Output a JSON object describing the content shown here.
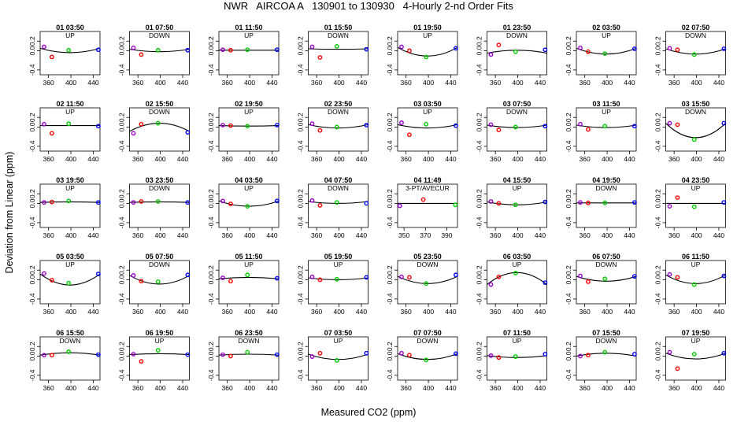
{
  "figure": {
    "title": "NWR   AIRCOA A   130901 to 130930   4-Hourly 2-nd Order Fits",
    "xlabel": "Measured CO2 (ppm)",
    "ylabel": "Deviation from Linear (ppm)"
  },
  "chart_data": {
    "type": "scatter",
    "title": "NWR   AIRCOA A   130901 to 130930   4-Hourly 2-nd Order Fits",
    "xlabel": "Measured CO2 (ppm)",
    "ylabel": "Deviation from Linear (ppm)",
    "default_xlim": [
      345,
      452
    ],
    "default_xticks": [
      360,
      400,
      440
    ],
    "ylim": [
      -0.5,
      0.4
    ],
    "yticks": [
      -0.4,
      0.0,
      0.2
    ],
    "point_colors": [
      "#9900cc",
      "#ff0000",
      "#00cc00",
      "#0000ff"
    ],
    "default_x": [
      352,
      366,
      396,
      449
    ],
    "panels": [
      {
        "title": "01 03:50",
        "label": "UP",
        "y": [
          0.08,
          -0.13,
          0.01,
          0.02
        ],
        "fit": [
          0.05,
          -0.04
        ]
      },
      {
        "title": "01 07:50",
        "label": "DOWN",
        "y": [
          0.06,
          -0.08,
          0.01,
          0.01
        ],
        "fit": [
          0.03,
          -0.02
        ]
      },
      {
        "title": "01 11:50",
        "label": "UP",
        "y": [
          0.02,
          0.01,
          0.02,
          0.02
        ],
        "fit": [
          0.01,
          0.01
        ]
      },
      {
        "title": "01 15:50",
        "label": "DOWN",
        "y": [
          0.08,
          -0.14,
          0.09,
          0.03
        ],
        "fit": [
          0.04,
          0.03
        ]
      },
      {
        "title": "01 19:50",
        "label": "UP",
        "y": [
          0.08,
          0.0,
          -0.13,
          0.05
        ],
        "fit": [
          0.07,
          -0.11
        ]
      },
      {
        "title": "01 23:50",
        "label": "DOWN",
        "y": [
          -0.08,
          0.12,
          -0.02,
          0.02
        ],
        "fit": [
          -0.05,
          0.01
        ]
      },
      {
        "title": "02 03:50",
        "label": "UP",
        "y": [
          0.06,
          -0.02,
          -0.06,
          0.04
        ],
        "fit": [
          0.05,
          -0.07
        ]
      },
      {
        "title": "02 07:50",
        "label": "DOWN",
        "y": [
          0.05,
          0.02,
          -0.08,
          0.04
        ],
        "fit": [
          0.04,
          -0.07
        ]
      },
      {
        "title": "02 11:50",
        "label": "UP",
        "y": [
          0.06,
          -0.13,
          0.07,
          0.02
        ],
        "fit": [
          0.03,
          0.03
        ]
      },
      {
        "title": "02 15:50",
        "label": "DOWN",
        "y": [
          -0.13,
          0.06,
          0.08,
          -0.11
        ],
        "fit": [
          -0.09,
          0.08
        ]
      },
      {
        "title": "02 19:50",
        "label": "UP",
        "y": [
          0.04,
          0.03,
          0.02,
          0.04
        ],
        "fit": [
          0.03,
          0.02
        ]
      },
      {
        "title": "02 23:50",
        "label": "DOWN",
        "y": [
          0.07,
          -0.07,
          0.0,
          0.04
        ],
        "fit": [
          0.05,
          -0.02
        ]
      },
      {
        "title": "03 03:50",
        "label": "UP",
        "y": [
          0.09,
          -0.16,
          0.06,
          0.03
        ],
        "fit": [
          0.05,
          -0.02
        ]
      },
      {
        "title": "03 07:50",
        "label": "DOWN",
        "y": [
          0.05,
          -0.06,
          0.0,
          0.02
        ],
        "fit": [
          0.04,
          -0.01
        ]
      },
      {
        "title": "03 11:50",
        "label": "UP",
        "y": [
          0.06,
          -0.05,
          0.02,
          0.02
        ],
        "fit": [
          0.04,
          -0.01
        ]
      },
      {
        "title": "03 15:50",
        "label": "DOWN",
        "y": [
          0.08,
          0.05,
          -0.26,
          0.08
        ],
        "fit": [
          0.08,
          -0.22
        ]
      },
      {
        "title": "03 19:50",
        "label": "UP",
        "y": [
          0.02,
          0.03,
          0.05,
          0.02
        ],
        "fit": [
          0.02,
          0.03
        ]
      },
      {
        "title": "03 23:50",
        "label": "DOWN",
        "y": [
          0.02,
          0.04,
          0.04,
          0.02
        ],
        "fit": [
          0.02,
          0.03
        ]
      },
      {
        "title": "04 03:50",
        "label": "UP",
        "y": [
          0.05,
          -0.01,
          -0.06,
          0.05
        ],
        "fit": [
          0.05,
          -0.06
        ]
      },
      {
        "title": "04 07:50",
        "label": "DOWN",
        "y": [
          0.06,
          -0.04,
          0.02,
          0.0
        ],
        "fit": [
          0.04,
          0.0
        ]
      },
      {
        "title": "04 11:49",
        "label": "3-PT/AVECUR",
        "x": [
          346,
          368,
          398
        ],
        "xlim": [
          344,
          400
        ],
        "xticks": [
          350,
          370,
          390
        ],
        "y": [
          -0.05,
          0.08,
          -0.03
        ],
        "fit": [
          0.0,
          0.0
        ]
      },
      {
        "title": "04 15:50",
        "label": "UP",
        "y": [
          0.04,
          0.0,
          -0.03,
          0.03
        ],
        "fit": [
          0.03,
          -0.03
        ]
      },
      {
        "title": "04 19:50",
        "label": "DOWN",
        "y": [
          0.02,
          0.01,
          0.01,
          0.02
        ],
        "fit": [
          0.01,
          0.01
        ]
      },
      {
        "title": "04 23:50",
        "label": "UP",
        "y": [
          -0.06,
          0.12,
          -0.07,
          0.02
        ],
        "fit": [
          0.0,
          0.0
        ]
      },
      {
        "title": "05 03:50",
        "label": "UP",
        "y": [
          0.13,
          -0.01,
          -0.07,
          0.12
        ],
        "fit": [
          0.12,
          -0.11
        ]
      },
      {
        "title": "05 07:50",
        "label": "DOWN",
        "y": [
          0.09,
          -0.03,
          -0.04,
          0.1
        ],
        "fit": [
          0.09,
          -0.09
        ]
      },
      {
        "title": "05 11:50",
        "label": "UP",
        "y": [
          0.04,
          -0.03,
          0.1,
          0.03
        ],
        "fit": [
          0.02,
          0.05
        ]
      },
      {
        "title": "05 19:50",
        "label": "UP",
        "y": [
          0.06,
          0.0,
          0.01,
          0.05
        ],
        "fit": [
          0.04,
          0.0
        ]
      },
      {
        "title": "05 23:50",
        "label": "DOWN",
        "y": [
          0.06,
          0.05,
          -0.08,
          0.1
        ],
        "fit": [
          0.07,
          -0.08
        ]
      },
      {
        "title": "06 03:50",
        "label": "UP",
        "y": [
          -0.1,
          0.06,
          0.14,
          -0.06
        ],
        "fit": [
          -0.1,
          0.15
        ]
      },
      {
        "title": "06 07:50",
        "label": "DOWN",
        "y": [
          0.08,
          -0.04,
          0.02,
          0.07
        ],
        "fit": [
          0.07,
          -0.03
        ]
      },
      {
        "title": "06 11:50",
        "label": "UP",
        "y": [
          0.11,
          0.05,
          -0.1,
          0.08
        ],
        "fit": [
          0.1,
          -0.08
        ]
      },
      {
        "title": "06 15:50",
        "label": "DOWN",
        "y": [
          0.02,
          0.02,
          0.09,
          0.03
        ],
        "fit": [
          0.02,
          0.07
        ]
      },
      {
        "title": "06 19:50",
        "label": "UP",
        "y": [
          0.04,
          -0.11,
          0.12,
          0.03
        ],
        "fit": [
          0.03,
          0.05
        ]
      },
      {
        "title": "06 23:50",
        "label": "DOWN",
        "y": [
          0.03,
          0.0,
          0.08,
          0.03
        ],
        "fit": [
          0.02,
          0.04
        ]
      },
      {
        "title": "07 03:50",
        "label": "UP",
        "y": [
          -0.01,
          0.06,
          -0.09,
          0.06
        ],
        "fit": [
          0.04,
          -0.07
        ]
      },
      {
        "title": "07 07:50",
        "label": "DOWN",
        "y": [
          0.06,
          0.02,
          -0.08,
          0.05
        ],
        "fit": [
          0.05,
          -0.07
        ]
      },
      {
        "title": "07 11:50",
        "label": "UP",
        "y": [
          0.01,
          -0.03,
          -0.01,
          0.04
        ],
        "fit": [
          0.01,
          -0.03
        ]
      },
      {
        "title": "07 15:50",
        "label": "DOWN",
        "y": [
          0.0,
          0.02,
          0.08,
          0.04
        ],
        "fit": [
          0.0,
          0.06
        ]
      },
      {
        "title": "07 19:50",
        "label": "UP",
        "y": [
          0.08,
          -0.26,
          0.04,
          0.06
        ],
        "fit": [
          0.06,
          -0.06
        ]
      }
    ]
  }
}
